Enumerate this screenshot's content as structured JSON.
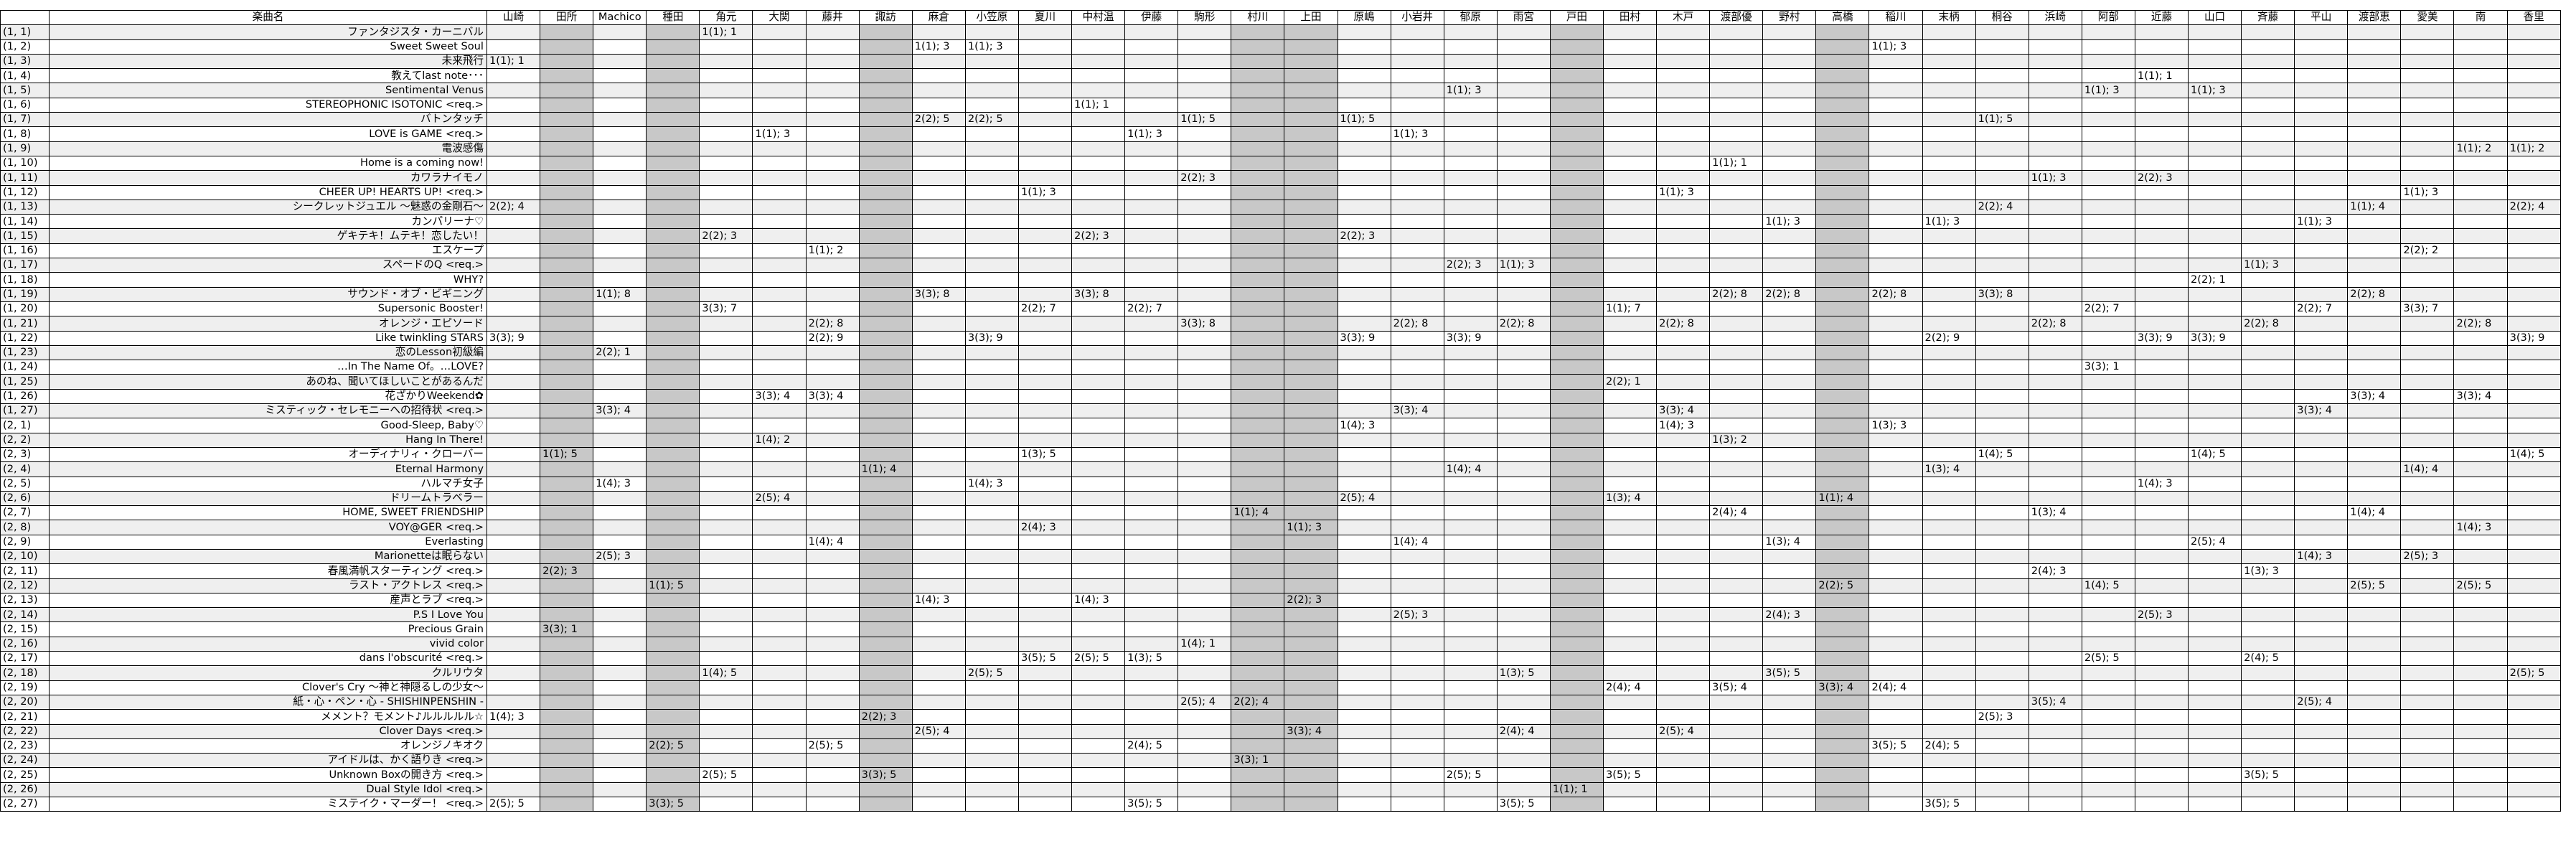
{
  "table": {
    "header_id": "",
    "header_title": "楽曲名",
    "members": [
      "山崎",
      "田所",
      "Machico",
      "種田",
      "角元",
      "大関",
      "藤井",
      "諏訪",
      "麻倉",
      "小笠原",
      "夏川",
      "中村温",
      "伊藤",
      "駒形",
      "村川",
      "上田",
      "原嶋",
      "小岩井",
      "郁原",
      "雨宮",
      "戸田",
      "田村",
      "木戸",
      "渡部優",
      "野村",
      "高橋",
      "稲川",
      "末柄",
      "桐谷",
      "浜崎",
      "阿部",
      "近藤",
      "山口",
      "斉藤",
      "平山",
      "渡部恵",
      "愛美",
      "南",
      "香里"
    ],
    "gray_columns": [
      1,
      3,
      7,
      14,
      15,
      20,
      25
    ],
    "rows": [
      {
        "id": "(1, 1)",
        "title": "ファンタジスタ・カーニバル",
        "cells": {
          "4": "1(1); 1"
        }
      },
      {
        "id": "(1, 2)",
        "title": "Sweet Sweet Soul",
        "cells": {
          "8": "1(1); 3",
          "9": "1(1); 3",
          "26": "1(1); 3"
        }
      },
      {
        "id": "(1, 3)",
        "title": "未来飛行",
        "cells": {
          "0": "1(1); 1"
        }
      },
      {
        "id": "(1, 4)",
        "title": "教えてlast note･･･",
        "cells": {
          "31": "1(1); 1"
        }
      },
      {
        "id": "(1, 5)",
        "title": "Sentimental Venus",
        "cells": {
          "18": "1(1); 3",
          "30": "1(1); 3",
          "32": "1(1); 3"
        }
      },
      {
        "id": "(1, 6)",
        "title": "STEREOPHONIC ISOTONIC <req.>",
        "cells": {
          "11": "1(1); 1"
        }
      },
      {
        "id": "(1, 7)",
        "title": "バトンタッチ",
        "cells": {
          "8": "2(2); 5",
          "9": "2(2); 5",
          "13": "1(1); 5",
          "16": "1(1); 5",
          "28": "1(1); 5"
        }
      },
      {
        "id": "(1, 8)",
        "title": "LOVE is GAME <req.>",
        "cells": {
          "5": "1(1); 3",
          "12": "1(1); 3",
          "17": "1(1); 3"
        }
      },
      {
        "id": "(1, 9)",
        "title": "電波感傷",
        "cells": {
          "37": "1(1); 2",
          "38": "1(1); 2"
        }
      },
      {
        "id": "(1, 10)",
        "title": "Home is a coming now!",
        "cells": {
          "23": "1(1); 1"
        }
      },
      {
        "id": "(1, 11)",
        "title": "カワラナイモノ",
        "cells": {
          "13": "2(2); 3",
          "29": "1(1); 3",
          "31": "2(2); 3"
        }
      },
      {
        "id": "(1, 12)",
        "title": "CHEER UP! HEARTS UP! <req.>",
        "cells": {
          "10": "1(1); 3",
          "22": "1(1); 3",
          "36": "1(1); 3"
        }
      },
      {
        "id": "(1, 13)",
        "title": "シークレットジュエル 〜魅惑の金剛石〜",
        "cells": {
          "0": "2(2); 4",
          "28": "2(2); 4",
          "35": "1(1); 4",
          "38": "2(2); 4"
        }
      },
      {
        "id": "(1, 14)",
        "title": "カンパリーナ♡",
        "cells": {
          "24": "1(1); 3",
          "27": "1(1); 3",
          "34": "1(1); 3"
        }
      },
      {
        "id": "(1, 15)",
        "title": "ゲキテキ！ムテキ！恋したい！",
        "cells": {
          "4": "2(2); 3",
          "11": "2(2); 3",
          "16": "2(2); 3"
        }
      },
      {
        "id": "(1, 16)",
        "title": "エスケープ",
        "cells": {
          "6": "1(1); 2",
          "36": "2(2); 2"
        }
      },
      {
        "id": "(1, 17)",
        "title": "スペードのQ <req.>",
        "cells": {
          "18": "2(2); 3",
          "19": "1(1); 3",
          "33": "1(1); 3"
        }
      },
      {
        "id": "(1, 18)",
        "title": "WHY?",
        "cells": {
          "32": "2(2); 1"
        }
      },
      {
        "id": "(1, 19)",
        "title": "サウンド・オブ・ビギニング",
        "cells": {
          "2": "1(1); 8",
          "8": "3(3); 8",
          "11": "3(3); 8",
          "23": "2(2); 8",
          "24": "2(2); 8",
          "26": "2(2); 8",
          "28": "3(3); 8",
          "35": "2(2); 8"
        }
      },
      {
        "id": "(1, 20)",
        "title": "Supersonic Booster!",
        "cells": {
          "4": "3(3); 7",
          "10": "2(2); 7",
          "12": "2(2); 7",
          "21": "1(1); 7",
          "30": "2(2); 7",
          "34": "2(2); 7",
          "36": "3(3); 7"
        }
      },
      {
        "id": "(1, 21)",
        "title": "オレンジ・エピソード",
        "cells": {
          "6": "2(2); 8",
          "13": "3(3); 8",
          "17": "2(2); 8",
          "19": "2(2); 8",
          "22": "2(2); 8",
          "29": "2(2); 8",
          "33": "2(2); 8",
          "37": "2(2); 8"
        }
      },
      {
        "id": "(1, 22)",
        "title": "Like twinkling STARS",
        "cells": {
          "0": "3(3); 9",
          "6": "2(2); 9",
          "9": "3(3); 9",
          "16": "3(3); 9",
          "18": "3(3); 9",
          "27": "2(2); 9",
          "31": "3(3); 9",
          "32": "3(3); 9",
          "38": "3(3); 9"
        }
      },
      {
        "id": "(1, 23)",
        "title": "恋のLesson初級編",
        "cells": {
          "2": "2(2); 1"
        }
      },
      {
        "id": "(1, 24)",
        "title": "…In The Name Of。…LOVE?",
        "cells": {
          "30": "3(3); 1"
        }
      },
      {
        "id": "(1, 25)",
        "title": "あのね、聞いてほしいことがあるんだ",
        "cells": {
          "21": "2(2); 1"
        }
      },
      {
        "id": "(1, 26)",
        "title": "花ざかりWeekend✿",
        "cells": {
          "5": "3(3); 4",
          "6": "3(3); 4",
          "35": "3(3); 4",
          "37": "3(3); 4"
        }
      },
      {
        "id": "(1, 27)",
        "title": "ミスティック・セレモニーへの招待状 <req.>",
        "cells": {
          "2": "3(3); 4",
          "17": "3(3); 4",
          "22": "3(3); 4",
          "34": "3(3); 4"
        }
      },
      {
        "id": "(2, 1)",
        "title": "Good-Sleep, Baby♡",
        "cells": {
          "16": "1(4); 3",
          "22": "1(4); 3",
          "26": "1(3); 3"
        }
      },
      {
        "id": "(2, 2)",
        "title": "Hang In There!",
        "cells": {
          "5": "1(4); 2",
          "23": "1(3); 2"
        }
      },
      {
        "id": "(2, 3)",
        "title": "オーディナリィ・クローバー",
        "cells": {
          "1": "1(1); 5",
          "10": "1(3); 5",
          "28": "1(4); 5",
          "32": "1(4); 5",
          "38": "1(4); 5"
        }
      },
      {
        "id": "(2, 4)",
        "title": "Eternal Harmony",
        "cells": {
          "7": "1(1); 4",
          "18": "1(4); 4",
          "27": "1(3); 4",
          "36": "1(4); 4"
        }
      },
      {
        "id": "(2, 5)",
        "title": "ハルマチ女子",
        "cells": {
          "2": "1(4); 3",
          "9": "1(4); 3",
          "31": "1(4); 3"
        }
      },
      {
        "id": "(2, 6)",
        "title": "ドリームトラベラー",
        "cells": {
          "5": "2(5); 4",
          "16": "2(5); 4",
          "21": "1(3); 4",
          "25": "1(1); 4"
        }
      },
      {
        "id": "(2, 7)",
        "title": "HOME, SWEET FRIENDSHIP",
        "cells": {
          "14": "1(1); 4",
          "23": "2(4); 4",
          "29": "1(3); 4",
          "35": "1(4); 4"
        }
      },
      {
        "id": "(2, 8)",
        "title": "VOY@GER <req.>",
        "cells": {
          "10": "2(4); 3",
          "15": "1(1); 3",
          "37": "1(4); 3"
        }
      },
      {
        "id": "(2, 9)",
        "title": "Everlasting",
        "cells": {
          "6": "1(4); 4",
          "17": "1(4); 4",
          "24": "1(3); 4",
          "32": "2(5); 4"
        }
      },
      {
        "id": "(2, 10)",
        "title": "Marionetteは眠らない",
        "cells": {
          "2": "2(5); 3",
          "34": "1(4); 3",
          "36": "2(5); 3"
        }
      },
      {
        "id": "(2, 11)",
        "title": "春風満帆スターティング <req.>",
        "cells": {
          "1": "2(2); 3",
          "29": "2(4); 3",
          "33": "1(3); 3"
        }
      },
      {
        "id": "(2, 12)",
        "title": "ラスト・アクトレス <req.>",
        "cells": {
          "3": "1(1); 5",
          "25": "2(2); 5",
          "30": "1(4); 5",
          "35": "2(5); 5",
          "37": "2(5); 5"
        }
      },
      {
        "id": "(2, 13)",
        "title": "産声とラブ <req.>",
        "cells": {
          "8": "1(4); 3",
          "11": "1(4); 3",
          "15": "2(2); 3"
        }
      },
      {
        "id": "(2, 14)",
        "title": "P.S I Love You",
        "cells": {
          "17": "2(5); 3",
          "24": "2(4); 3",
          "31": "2(5); 3"
        }
      },
      {
        "id": "(2, 15)",
        "title": "Precious Grain",
        "cells": {
          "1": "3(3); 1"
        }
      },
      {
        "id": "(2, 16)",
        "title": "vivid color",
        "cells": {
          "13": "1(4); 1"
        }
      },
      {
        "id": "(2, 17)",
        "title": "dans l'obscurité <req.>",
        "cells": {
          "10": "3(5); 5",
          "11": "2(5); 5",
          "12": "1(3); 5",
          "30": "2(5); 5",
          "33": "2(4); 5"
        }
      },
      {
        "id": "(2, 18)",
        "title": "クルリウタ",
        "cells": {
          "4": "1(4); 5",
          "9": "2(5); 5",
          "19": "1(3); 5",
          "24": "3(5); 5",
          "38": "2(5); 5"
        }
      },
      {
        "id": "(2, 19)",
        "title": "Clover's Cry 〜神と神隠るしの少女〜",
        "cells": {
          "21": "2(4); 4",
          "23": "3(5); 4",
          "25": "3(3); 4",
          "26": "2(4); 4"
        }
      },
      {
        "id": "(2, 20)",
        "title": "紙・心・ペン・心 - SHISHINPENSHIN -",
        "cells": {
          "13": "2(5); 4",
          "14": "2(2); 4",
          "29": "3(5); 4",
          "34": "2(5); 4"
        }
      },
      {
        "id": "(2, 21)",
        "title": "メメント？モメント♪ルルルルル☆",
        "cells": {
          "0": "1(4); 3",
          "7": "2(2); 3",
          "28": "2(5); 3"
        }
      },
      {
        "id": "(2, 22)",
        "title": "Clover Days <req.>",
        "cells": {
          "8": "2(5); 4",
          "15": "3(3); 4",
          "19": "2(4); 4",
          "22": "2(5); 4"
        }
      },
      {
        "id": "(2, 23)",
        "title": "オレンジノキオク",
        "cells": {
          "3": "2(2); 5",
          "6": "2(5); 5",
          "12": "2(4); 5",
          "26": "3(5); 5",
          "27": "2(4); 5"
        }
      },
      {
        "id": "(2, 24)",
        "title": "アイドルは、かく語りき <req.>",
        "cells": {
          "14": "3(3); 1"
        }
      },
      {
        "id": "(2, 25)",
        "title": "Unknown Boxの開き方 <req.>",
        "cells": {
          "4": "2(5); 5",
          "7": "3(3); 5",
          "18": "2(5); 5",
          "21": "3(5); 5",
          "33": "3(5); 5"
        }
      },
      {
        "id": "(2, 26)",
        "title": "Dual Style Idol <req.>",
        "cells": {
          "20": "1(1); 1"
        }
      },
      {
        "id": "(2, 27)",
        "title": "ミステイク・マーダー！ <req.>",
        "cells": {
          "0": "2(5); 5",
          "3": "3(3); 5",
          "12": "3(5); 5",
          "19": "3(5); 5",
          "27": "3(5); 5"
        }
      }
    ]
  }
}
